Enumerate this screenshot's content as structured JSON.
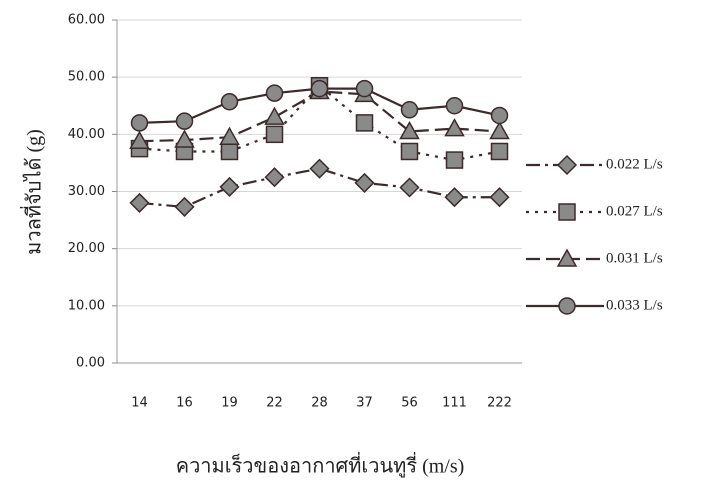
{
  "chart_data": {
    "type": "line",
    "y_label": "มวลที่จับได้ (g)",
    "x_label": "ความเร็วของอากาศที่เวนทูรี่ (m/s)",
    "categories": [
      "14",
      "16",
      "19",
      "22",
      "28",
      "37",
      "56",
      "111",
      "222"
    ],
    "series": [
      {
        "name": "0.022 L/s",
        "color": "#3b2b2b",
        "marker": "diamond",
        "dash": "dash-dot",
        "values": [
          28,
          27.3,
          30.8,
          32.5,
          34,
          31.5,
          30.7,
          29,
          29
        ]
      },
      {
        "name": "0.027 L/s",
        "color": "#3b2b2b",
        "marker": "square",
        "dash": "dotted",
        "values": [
          37.5,
          37,
          37,
          40,
          48.5,
          42,
          37,
          35.5,
          37
        ]
      },
      {
        "name": "0.031 L/s",
        "color": "#3b2b2b",
        "marker": "triangle",
        "dash": "dashed",
        "values": [
          38.8,
          39,
          39.5,
          43,
          47.5,
          47,
          40.5,
          41,
          40.5
        ]
      },
      {
        "name": "0.033 L/s",
        "color": "#3b2b2b",
        "marker": "circle",
        "dash": "solid",
        "values": [
          42,
          42.3,
          45.7,
          47.2,
          48,
          48,
          44.3,
          45,
          43.3
        ]
      }
    ],
    "ylim": [
      0,
      60
    ],
    "yticks": [
      {
        "value": 0,
        "label": "0.00"
      },
      {
        "value": 10,
        "label": "10.00"
      },
      {
        "value": 20,
        "label": "20.00"
      },
      {
        "value": 30,
        "label": "30.00"
      },
      {
        "value": 40,
        "label": "40.00"
      },
      {
        "value": 50,
        "label": "50.00"
      },
      {
        "value": 60,
        "label": "60.00"
      }
    ],
    "grid": true
  }
}
